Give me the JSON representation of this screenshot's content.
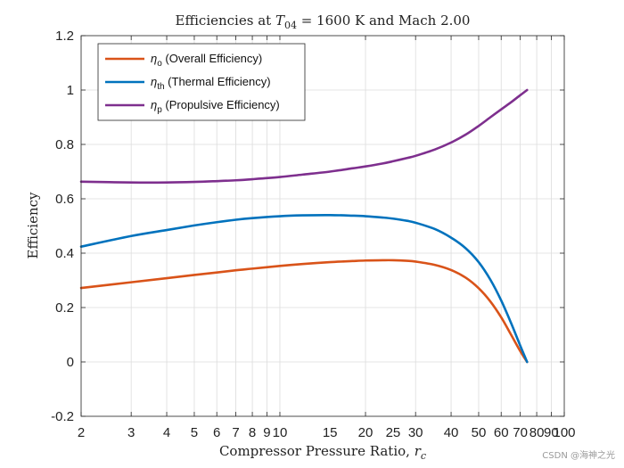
{
  "chart_data": {
    "type": "line",
    "title": "Efficiencies at T04 = 1600 K and Mach 2.00",
    "title_parts": {
      "prefix": "Efficiencies at ",
      "var": "T",
      "sub": "04",
      "suffix": " = 1600 K and Mach 2.00"
    },
    "xlabel": "Compressor Pressure Ratio, r_c",
    "xlabel_parts": {
      "prefix": "Compressor Pressure Ratio, ",
      "var": "r",
      "sub": "c"
    },
    "ylabel": "Efficiency",
    "xscale": "log",
    "xlim": [
      2,
      100
    ],
    "ylim": [
      -0.2,
      1.2
    ],
    "grid": true,
    "legend_position": "top-left",
    "xticks": [
      2,
      3,
      4,
      5,
      6,
      7,
      8,
      9,
      10,
      20,
      30,
      40,
      50,
      60,
      70,
      80,
      90,
      100
    ],
    "xtick_labels": [
      "2",
      "3",
      "4",
      "5",
      "6",
      "7",
      "8",
      "9",
      "10",
      "20",
      "30",
      "40",
      "50",
      "60",
      "70",
      "80",
      "90",
      "100"
    ],
    "xtick_labels_minor": [
      "15",
      "25"
    ],
    "yticks": [
      -0.2,
      0,
      0.2,
      0.4,
      0.6,
      0.8,
      1,
      1.2
    ],
    "ytick_labels": [
      "-0.2",
      "0",
      "0.2",
      "0.4",
      "0.6",
      "0.8",
      "1",
      "1.2"
    ],
    "x": [
      2,
      3,
      4,
      5,
      6,
      7,
      8,
      10,
      12,
      15,
      18,
      20,
      23,
      25,
      28,
      30,
      35,
      40,
      45,
      50,
      55,
      60,
      65,
      70,
      74
    ],
    "series": [
      {
        "name": "η_o (Overall Efficiency)",
        "symbol": "η",
        "sub": "o",
        "desc": "(Overall Efficiency)",
        "color": "#D95319",
        "values": [
          0.272,
          0.293,
          0.308,
          0.32,
          0.329,
          0.337,
          0.343,
          0.353,
          0.36,
          0.367,
          0.371,
          0.373,
          0.374,
          0.374,
          0.372,
          0.369,
          0.357,
          0.338,
          0.31,
          0.271,
          0.222,
          0.164,
          0.1,
          0.04,
          0.0
        ]
      },
      {
        "name": "η_th (Thermal Efficiency)",
        "symbol": "η",
        "sub": "th",
        "desc": "(Thermal Efficiency)",
        "color": "#0072BD",
        "values": [
          0.424,
          0.463,
          0.485,
          0.502,
          0.514,
          0.523,
          0.529,
          0.536,
          0.539,
          0.54,
          0.538,
          0.536,
          0.531,
          0.527,
          0.519,
          0.512,
          0.489,
          0.457,
          0.418,
          0.367,
          0.302,
          0.226,
          0.143,
          0.06,
          0.0
        ]
      },
      {
        "name": "η_p (Propulsive Efficiency)",
        "symbol": "η",
        "sub": "p",
        "desc": "(Propulsive Efficiency)",
        "color": "#7E2F8E",
        "values": [
          0.663,
          0.66,
          0.66,
          0.662,
          0.665,
          0.668,
          0.672,
          0.68,
          0.689,
          0.7,
          0.712,
          0.719,
          0.73,
          0.738,
          0.75,
          0.758,
          0.781,
          0.807,
          0.836,
          0.868,
          0.9,
          0.929,
          0.955,
          0.981,
          1.0
        ]
      }
    ]
  },
  "watermark": "CSDN @海神之光"
}
